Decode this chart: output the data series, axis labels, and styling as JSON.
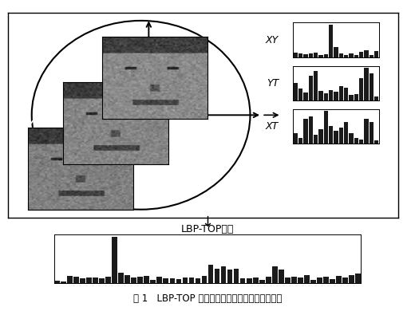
{
  "title": "图 1   LBP-TOP 提取微表情图像序列的时空域特征",
  "lbp_top_label": "LBP-TOP特征",
  "xy_label": "XY",
  "yt_label": "YT",
  "xt_label": "XT",
  "xy_hist": [
    1.2,
    1.0,
    0.8,
    1.1,
    1.3,
    0.7,
    0.9,
    8.5,
    2.8,
    1.0,
    0.6,
    1.1,
    0.7,
    1.4,
    1.9,
    0.6,
    1.7
  ],
  "yt_hist": [
    2.2,
    1.5,
    1.0,
    3.2,
    3.8,
    1.2,
    0.9,
    1.3,
    1.1,
    1.8,
    1.6,
    0.7,
    0.8,
    2.8,
    4.2,
    3.5,
    0.5
  ],
  "xt_hist": [
    1.3,
    0.7,
    3.2,
    3.5,
    1.1,
    1.8,
    4.2,
    2.3,
    1.6,
    2.0,
    2.8,
    1.3,
    0.7,
    0.5,
    3.2,
    2.8,
    0.4
  ],
  "combined_hist": [
    0.4,
    0.3,
    1.5,
    1.3,
    1.0,
    1.2,
    1.1,
    0.9,
    1.3,
    9.5,
    2.2,
    1.6,
    1.1,
    1.3,
    1.4,
    0.7,
    1.3,
    1.0,
    0.9,
    0.8,
    1.1,
    1.2,
    1.0,
    1.4,
    3.8,
    3.0,
    3.5,
    2.8,
    3.0,
    0.9,
    1.0,
    1.1,
    0.7,
    1.3,
    3.5,
    2.8,
    1.1,
    1.3,
    1.2,
    1.6,
    0.7,
    1.1,
    1.3,
    0.8,
    1.4,
    1.2,
    1.7,
    2.0
  ],
  "bar_color": "#1a1a1a",
  "bg_color": "#ffffff",
  "border_color": "#000000"
}
